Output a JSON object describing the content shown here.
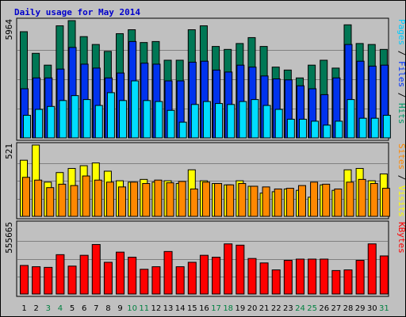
{
  "title": "Daily usage for May 2014",
  "panels": {
    "top": {
      "max_label": "5964",
      "legend": [
        {
          "text": "Pages",
          "color": "#00ccff"
        },
        {
          "text": " / ",
          "color": "#000000"
        },
        {
          "text": "Files",
          "color": "#0033ff"
        },
        {
          "text": " / ",
          "color": "#000000"
        },
        {
          "text": "Hits",
          "color": "#009966"
        }
      ]
    },
    "mid": {
      "max_label": "521",
      "legend": [
        {
          "text": "Sites",
          "color": "#ff8800"
        },
        {
          "text": " / ",
          "color": "#000000"
        },
        {
          "text": "Visits",
          "color": "#ffff00"
        }
      ]
    },
    "bot": {
      "max_label": "555665",
      "legend": [
        {
          "text": "KBytes",
          "color": "#ff0000"
        }
      ]
    }
  },
  "colors": {
    "hits": "#007755",
    "files": "#0033ee",
    "pages": "#00ddff",
    "visits": "#ffff00",
    "sites": "#ff8800",
    "kbytes": "#ff0000",
    "weekend_tick": "#008040",
    "weekday_tick": "#000000"
  },
  "chart_data": {
    "type": "bar",
    "categories": [
      "1",
      "2",
      "3",
      "4",
      "5",
      "6",
      "7",
      "8",
      "9",
      "10",
      "11",
      "12",
      "13",
      "14",
      "15",
      "16",
      "17",
      "18",
      "19",
      "20",
      "21",
      "22",
      "23",
      "24",
      "25",
      "26",
      "27",
      "28",
      "29",
      "30",
      "31"
    ],
    "weekend_days": [
      "3",
      "4",
      "10",
      "11",
      "17",
      "18",
      "24",
      "25",
      "31"
    ],
    "groups": [
      {
        "panel": "top",
        "ylim": [
          0,
          5964
        ],
        "series": [
          {
            "name": "Hits",
            "values": [
              5400,
              4300,
              3700,
              5700,
              6000,
              5150,
              4750,
              4400,
              5300,
              5500,
              4850,
              4900,
              3950,
              3950,
              5500,
              5700,
              4650,
              4500,
              4800,
              5100,
              4650,
              3600,
              3450,
              3050,
              3700,
              3950,
              3550,
              5750,
              4800,
              4750,
              4500
            ]
          },
          {
            "name": "Files",
            "values": [
              2500,
              3050,
              3050,
              3500,
              4600,
              3750,
              3550,
              3050,
              3300,
              4900,
              3800,
              3750,
              2900,
              2900,
              3850,
              3900,
              3450,
              3350,
              3700,
              3600,
              3150,
              3000,
              2950,
              2650,
              2500,
              2200,
              3050,
              4750,
              3900,
              3650,
              3700
            ]
          },
          {
            "name": "Pages",
            "values": [
              1150,
              1450,
              1600,
              1900,
              2150,
              1950,
              1650,
              2300,
              1900,
              2900,
              1900,
              1850,
              1400,
              800,
              1700,
              1850,
              1750,
              1700,
              1850,
              1950,
              1650,
              1450,
              950,
              950,
              850,
              650,
              850,
              1950,
              1000,
              1000,
              1150
            ]
          }
        ]
      },
      {
        "panel": "mid",
        "ylim": [
          0,
          521
        ],
        "series": [
          {
            "name": "Visits",
            "values": [
              410,
              521,
              250,
              320,
              350,
              370,
              390,
              330,
              260,
              250,
              270,
              250,
              260,
              240,
              340,
              260,
              240,
              230,
              260,
              220,
              170,
              180,
              200,
              190,
              140,
              230,
              190,
              340,
              350,
              260,
              310
            ]
          },
          {
            "name": "Sites",
            "values": [
              285,
              265,
              210,
              235,
              225,
              295,
              265,
              250,
              215,
              250,
              240,
              265,
              245,
              255,
              200,
              250,
              240,
              230,
              240,
              220,
              215,
              200,
              205,
              225,
              250,
              235,
              200,
              250,
              270,
              240,
              205
            ]
          }
        ]
      },
      {
        "panel": "bot",
        "ylim": [
          0,
          555665
        ],
        "series": [
          {
            "name": "KBytes",
            "values": [
              225000,
              215000,
              210000,
              310000,
              220000,
              305000,
              390000,
              250000,
              330000,
              290000,
              195000,
              215000,
              335000,
              215000,
              250000,
              305000,
              290000,
              395000,
              385000,
              280000,
              245000,
              190000,
              265000,
              275000,
              275000,
              275000,
              185000,
              190000,
              265000,
              395000,
              300000
            ]
          }
        ]
      }
    ]
  }
}
